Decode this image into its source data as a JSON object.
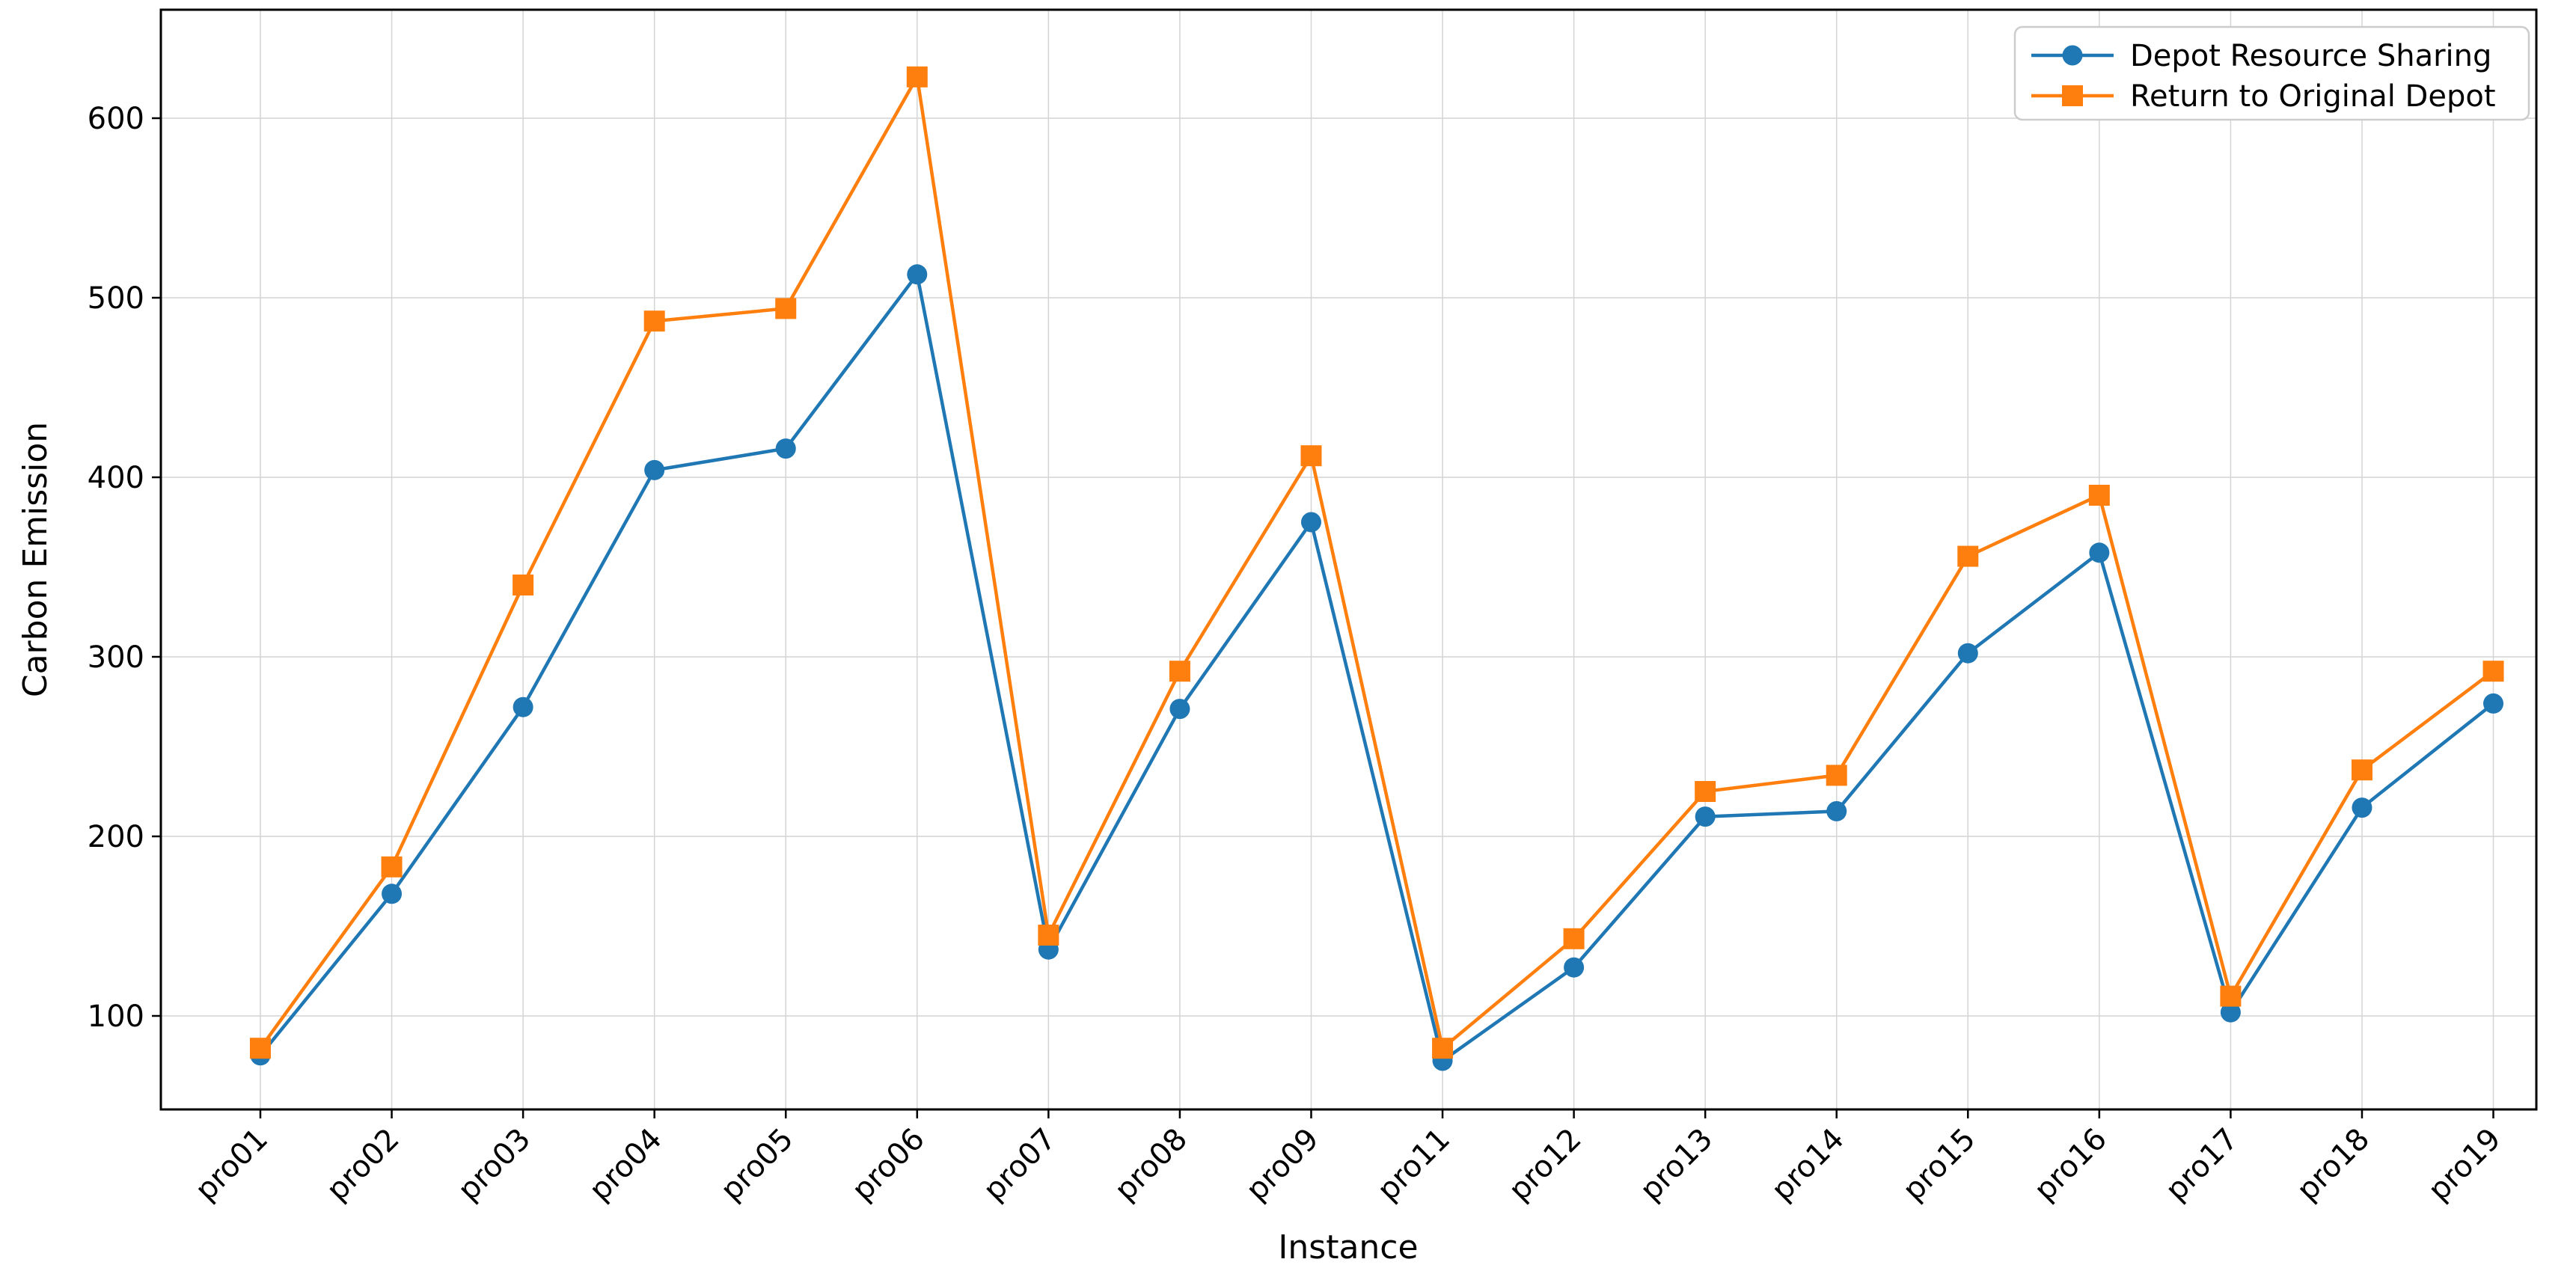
{
  "figure": {
    "xlabel": "Instance",
    "ylabel": "Carbon Emission",
    "colors": {
      "series1": "#1f77b4",
      "series2": "#ff7f0e",
      "grid": "#d4d4d4",
      "spine": "#000000",
      "legend_border": "#cccccc",
      "background": "#ffffff"
    },
    "legend": {
      "entries": [
        {
          "label": "Depot Resource Sharing",
          "color": "#1f77b4",
          "marker": "circle"
        },
        {
          "label": "Return to Original Depot",
          "color": "#ff7f0e",
          "marker": "square"
        }
      ],
      "position": "upper right"
    }
  },
  "chart_data": {
    "type": "line",
    "title": "",
    "xlabel": "Instance",
    "ylabel": "Carbon Emission",
    "categories": [
      "pro01",
      "pro02",
      "pro03",
      "pro04",
      "pro05",
      "pro06",
      "pro07",
      "pro08",
      "pro09",
      "pro11",
      "pro12",
      "pro13",
      "pro14",
      "pro15",
      "pro16",
      "pro17",
      "pro18",
      "pro19"
    ],
    "series": [
      {
        "name": "Depot Resource Sharing",
        "color": "#1f77b4",
        "marker": "circle",
        "values": [
          78,
          168,
          272,
          404,
          416,
          513,
          137,
          271,
          375,
          75,
          127,
          211,
          214,
          302,
          358,
          102,
          216,
          274
        ]
      },
      {
        "name": "Return to Original Depot",
        "color": "#ff7f0e",
        "marker": "square",
        "values": [
          82,
          183,
          340,
          487,
          494,
          623,
          145,
          292,
          412,
          82,
          143,
          225,
          234,
          356,
          390,
          111,
          237,
          292
        ]
      }
    ],
    "yticks": [
      100,
      200,
      300,
      400,
      500,
      600
    ],
    "ylim": [
      48,
      660
    ],
    "grid": true,
    "legend_position": "upper right",
    "x_tick_rotation_deg": 45
  }
}
